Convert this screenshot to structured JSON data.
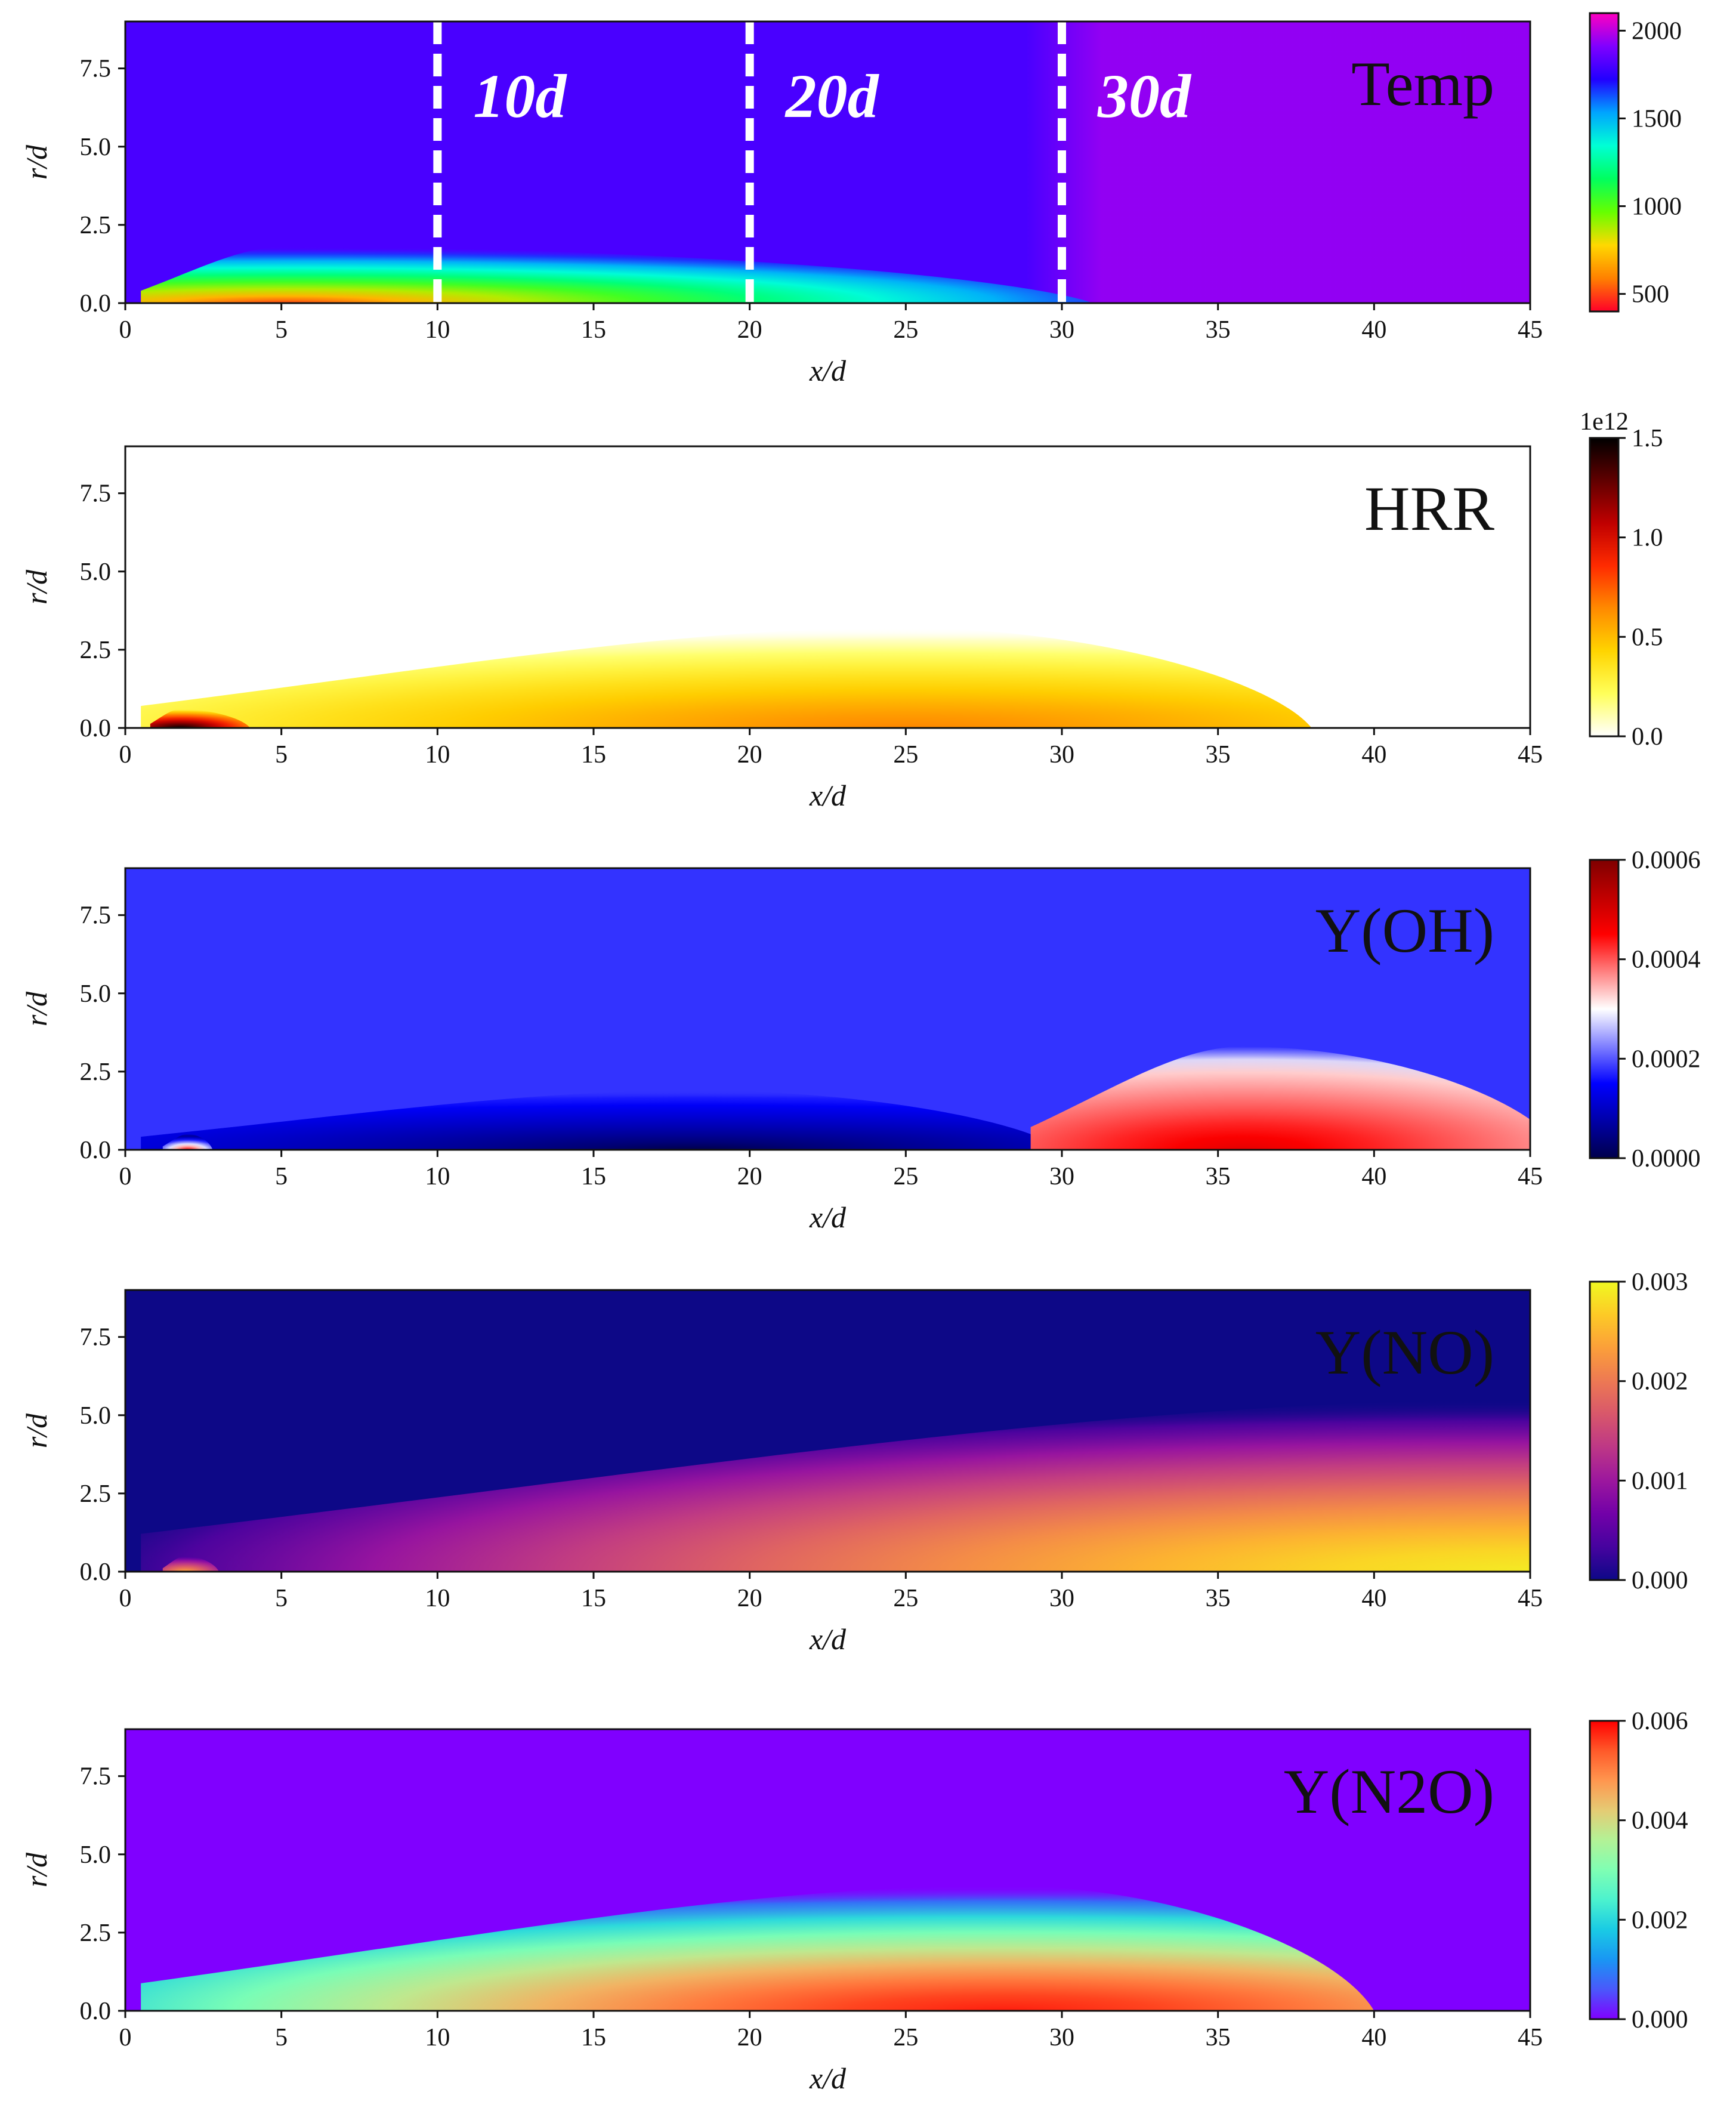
{
  "chart_data": [
    {
      "type": "heatmap",
      "title": "Temp",
      "xlabel": "x/d",
      "ylabel": "r/d",
      "xlim": [
        0,
        45
      ],
      "ylim": [
        0,
        9
      ],
      "xticks": [
        "0",
        "5",
        "10",
        "15",
        "20",
        "25",
        "30",
        "35",
        "40",
        "45"
      ],
      "yticks": [
        "0.0",
        "2.5",
        "5.0",
        "7.5"
      ],
      "colorbar": {
        "min": 400,
        "max": 2100,
        "ticks": [
          "500",
          "1000",
          "1500",
          "2000"
        ],
        "offset": "",
        "colormap": "gist_rainbow"
      },
      "annotations": [
        {
          "text": "10d",
          "x": 10
        },
        {
          "text": "20d",
          "x": 20
        },
        {
          "text": "30d",
          "x": 30
        }
      ],
      "background_value": 1800,
      "plumes": [
        {
          "x0": 0.5,
          "x1": 31,
          "r_end": 1.8,
          "peak_at": 0.15,
          "core": 500,
          "edge": 1800,
          "exponent": 0.9
        }
      ],
      "downstream": {
        "from": 30,
        "value": 1950
      }
    },
    {
      "type": "heatmap",
      "title": "HRR",
      "xlabel": "x/d",
      "ylabel": "r/d",
      "xlim": [
        0,
        45
      ],
      "ylim": [
        0,
        9
      ],
      "xticks": [
        "0",
        "5",
        "10",
        "15",
        "20",
        "25",
        "30",
        "35",
        "40",
        "45"
      ],
      "yticks": [
        "0.0",
        "2.5",
        "5.0",
        "7.5"
      ],
      "colorbar": {
        "min": 0,
        "max": 1.5,
        "ticks": [
          "0.0",
          "0.5",
          "1.0",
          "1.5"
        ],
        "offset": "1e12",
        "colormap": "hot_r"
      },
      "background_value": 0,
      "plumes": [
        {
          "x0": 0.5,
          "x1": 38,
          "r_end": 3.2,
          "peak_at": 0.65,
          "core": 0.65,
          "edge": 0.0,
          "exponent": 1.2
        },
        {
          "x0": 0.8,
          "x1": 4,
          "r_end": 0.6,
          "peak_at": 0.3,
          "core": 1.5,
          "edge": 0.3,
          "exponent": 1.0
        }
      ]
    },
    {
      "type": "heatmap",
      "title": "Y(OH)",
      "xlabel": "x/d",
      "ylabel": "r/d",
      "xlim": [
        0,
        45
      ],
      "ylim": [
        0,
        9
      ],
      "xticks": [
        "0",
        "5",
        "10",
        "15",
        "20",
        "25",
        "30",
        "35",
        "40",
        "45"
      ],
      "yticks": [
        "0.0",
        "2.5",
        "5.0",
        "7.5"
      ],
      "colorbar": {
        "min": 0,
        "max": 0.0006,
        "ticks": [
          "0.0000",
          "0.0002",
          "0.0004",
          "0.0006"
        ],
        "offset": "",
        "colormap": "seismic"
      },
      "background_value": 0.00018,
      "plumes": [
        {
          "x0": 0.5,
          "x1": 30,
          "r_end": 1.9,
          "peak_at": 0.6,
          "core": 0.0,
          "edge": 0.00018,
          "exponent": 0.8
        },
        {
          "x0": 29,
          "x1": 46,
          "r_end": 3.3,
          "peak_at": 0.4,
          "core": 0.00048,
          "edge": 0.00028,
          "exponent": 1.0
        },
        {
          "x0": 1.2,
          "x1": 2.8,
          "r_end": 0.5,
          "peak_at": 0.5,
          "core": 0.00045,
          "edge": 0.0,
          "exponent": 1.0
        }
      ]
    },
    {
      "type": "heatmap",
      "title": "Y(NO)",
      "xlabel": "x/d",
      "ylabel": "r/d",
      "xlim": [
        0,
        45
      ],
      "ylim": [
        0,
        9
      ],
      "xticks": [
        "0",
        "5",
        "10",
        "15",
        "20",
        "25",
        "30",
        "35",
        "40",
        "45"
      ],
      "yticks": [
        "0.0",
        "2.5",
        "5.0",
        "7.5"
      ],
      "colorbar": {
        "min": 0,
        "max": 0.003,
        "ticks": [
          "0.000",
          "0.001",
          "0.002",
          "0.003"
        ],
        "offset": "",
        "colormap": "plasma"
      },
      "background_value": 0.0,
      "plumes": [
        {
          "x0": 0.5,
          "x1": 50,
          "r_end": 5.5,
          "peak_at": 0.9,
          "core": 0.0029,
          "edge": 0.0,
          "exponent": 1.4
        },
        {
          "x0": 1.2,
          "x1": 3.0,
          "r_end": 0.5,
          "peak_at": 0.4,
          "core": 0.0024,
          "edge": 0.0003,
          "exponent": 1.0
        }
      ]
    },
    {
      "type": "heatmap",
      "title": "Y(N2O)",
      "xlabel": "x/d",
      "ylabel": "r/d",
      "xlim": [
        0,
        45
      ],
      "ylim": [
        0,
        9
      ],
      "xticks": [
        "0",
        "5",
        "10",
        "15",
        "20",
        "25",
        "30",
        "35",
        "40",
        "45"
      ],
      "yticks": [
        "0.0",
        "2.5",
        "5.0",
        "7.5"
      ],
      "colorbar": {
        "min": 0,
        "max": 0.006,
        "ticks": [
          "0.000",
          "0.002",
          "0.004",
          "0.006"
        ],
        "offset": "",
        "colormap": "rainbow"
      },
      "background_value": 0.0,
      "plumes": [
        {
          "x0": 0.5,
          "x1": 40,
          "r_end": 4.0,
          "peak_at": 0.7,
          "core": 0.0058,
          "edge": 0.0,
          "exponent": 1.5
        }
      ]
    }
  ]
}
